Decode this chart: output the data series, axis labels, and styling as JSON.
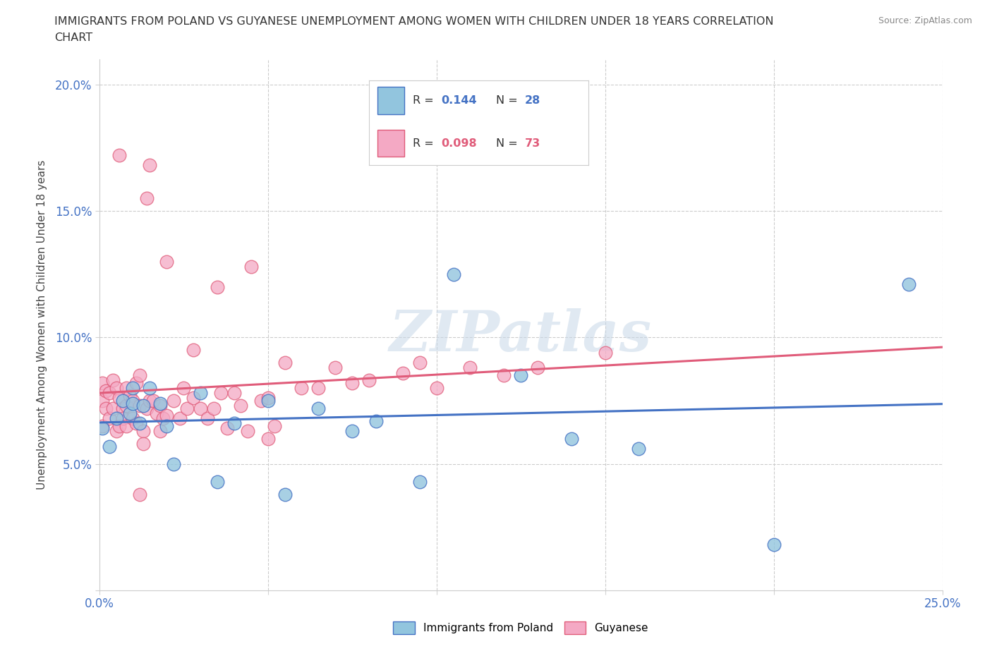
{
  "title_line1": "IMMIGRANTS FROM POLAND VS GUYANESE UNEMPLOYMENT AMONG WOMEN WITH CHILDREN UNDER 18 YEARS CORRELATION",
  "title_line2": "CHART",
  "source": "Source: ZipAtlas.com",
  "ylabel": "Unemployment Among Women with Children Under 18 years",
  "xlim": [
    0.0,
    0.25
  ],
  "ylim": [
    0.0,
    0.21
  ],
  "color_poland": "#92C5DE",
  "color_guyanese": "#F4A9C4",
  "color_line_poland": "#4472C4",
  "color_line_guyanese": "#E05C7A",
  "watermark": "ZIPatlas",
  "poland_x": [
    0.001,
    0.003,
    0.005,
    0.007,
    0.009,
    0.01,
    0.01,
    0.012,
    0.013,
    0.015,
    0.018,
    0.02,
    0.022,
    0.03,
    0.035,
    0.04,
    0.05,
    0.055,
    0.065,
    0.075,
    0.082,
    0.095,
    0.105,
    0.125,
    0.14,
    0.16,
    0.2,
    0.24
  ],
  "poland_y": [
    0.064,
    0.057,
    0.068,
    0.075,
    0.07,
    0.08,
    0.074,
    0.066,
    0.073,
    0.08,
    0.074,
    0.065,
    0.05,
    0.078,
    0.043,
    0.066,
    0.075,
    0.038,
    0.072,
    0.063,
    0.067,
    0.043,
    0.125,
    0.085,
    0.06,
    0.056,
    0.018,
    0.121
  ],
  "guyanese_x": [
    0.001,
    0.001,
    0.001,
    0.002,
    0.002,
    0.003,
    0.003,
    0.004,
    0.004,
    0.005,
    0.005,
    0.006,
    0.006,
    0.007,
    0.007,
    0.008,
    0.008,
    0.008,
    0.009,
    0.01,
    0.01,
    0.011,
    0.011,
    0.012,
    0.012,
    0.013,
    0.013,
    0.014,
    0.015,
    0.015,
    0.016,
    0.017,
    0.018,
    0.018,
    0.019,
    0.02,
    0.022,
    0.024,
    0.025,
    0.026,
    0.028,
    0.03,
    0.032,
    0.034,
    0.036,
    0.038,
    0.04,
    0.042,
    0.044,
    0.048,
    0.05,
    0.052,
    0.055,
    0.06,
    0.065,
    0.07,
    0.075,
    0.08,
    0.09,
    0.095,
    0.1,
    0.11,
    0.12,
    0.13,
    0.15,
    0.006,
    0.014,
    0.02,
    0.035,
    0.045,
    0.028,
    0.05,
    0.012
  ],
  "guyanese_y": [
    0.075,
    0.082,
    0.065,
    0.079,
    0.072,
    0.078,
    0.068,
    0.083,
    0.072,
    0.08,
    0.063,
    0.076,
    0.065,
    0.072,
    0.068,
    0.08,
    0.073,
    0.065,
    0.077,
    0.075,
    0.068,
    0.082,
    0.066,
    0.085,
    0.073,
    0.063,
    0.058,
    0.072,
    0.168,
    0.075,
    0.075,
    0.07,
    0.063,
    0.073,
    0.068,
    0.069,
    0.075,
    0.068,
    0.08,
    0.072,
    0.076,
    0.072,
    0.068,
    0.072,
    0.078,
    0.064,
    0.078,
    0.073,
    0.063,
    0.075,
    0.076,
    0.065,
    0.09,
    0.08,
    0.08,
    0.088,
    0.082,
    0.083,
    0.086,
    0.09,
    0.08,
    0.088,
    0.085,
    0.088,
    0.094,
    0.172,
    0.155,
    0.13,
    0.12,
    0.128,
    0.095,
    0.06,
    0.038
  ]
}
